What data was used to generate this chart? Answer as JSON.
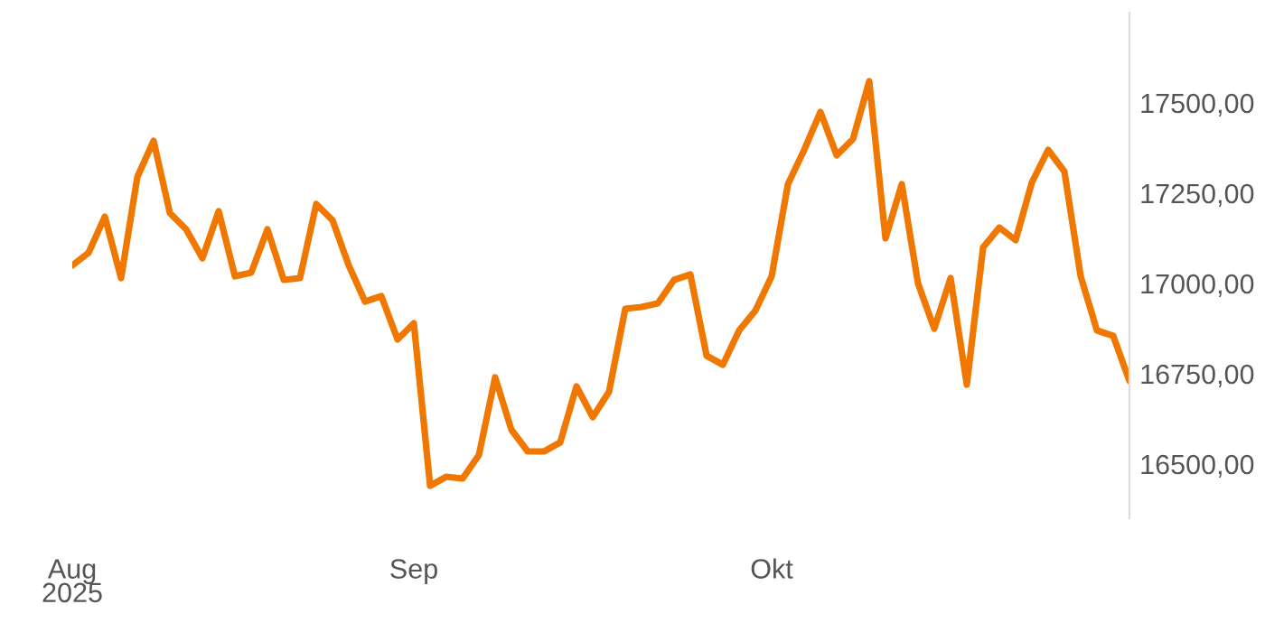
{
  "chart_data": {
    "type": "line",
    "categories": [
      "Aug\n2025",
      null,
      null,
      null,
      null,
      null,
      null,
      null,
      null,
      null,
      null,
      null,
      null,
      null,
      null,
      null,
      null,
      null,
      null,
      null,
      null,
      "Sep",
      null,
      null,
      null,
      null,
      null,
      null,
      null,
      null,
      null,
      null,
      null,
      null,
      null,
      null,
      null,
      null,
      null,
      null,
      null,
      null,
      null,
      "Okt",
      null,
      null,
      null,
      null,
      null,
      null,
      null,
      null,
      null,
      null,
      null,
      null,
      null,
      null,
      null,
      null,
      null,
      null,
      null,
      null,
      null,
      null
    ],
    "series": [
      {
        "color": "#f07800",
        "values": [
          17050,
          17085,
          17185,
          17015,
          17295,
          17395,
          17195,
          17150,
          17070,
          17200,
          17020,
          17030,
          17150,
          17010,
          17015,
          17220,
          17175,
          17050,
          16950,
          16965,
          16845,
          16890,
          16440,
          16465,
          16460,
          16525,
          16740,
          16595,
          16535,
          16535,
          16560,
          16715,
          16630,
          16700,
          16930,
          16935,
          16945,
          17010,
          17025,
          16800,
          16775,
          16870,
          16925,
          17020,
          17275,
          17370,
          17475,
          17355,
          17400,
          17560,
          17125,
          17275,
          17000,
          16875,
          17015,
          16720,
          17100,
          17155,
          17120,
          17280,
          17370,
          17310,
          17020,
          16870,
          16855,
          16730
        ]
      }
    ],
    "ylim": [
      16350,
      17750
    ],
    "yticks": [
      {
        "value": 16500,
        "label": "16500,00"
      },
      {
        "value": 16750,
        "label": "16750,00"
      },
      {
        "value": 17000,
        "label": "17000,00"
      },
      {
        "value": 17250,
        "label": "17250,00"
      },
      {
        "value": 17500,
        "label": "17500,00"
      }
    ],
    "grid": false,
    "marker": "none",
    "line_style": "solid"
  }
}
